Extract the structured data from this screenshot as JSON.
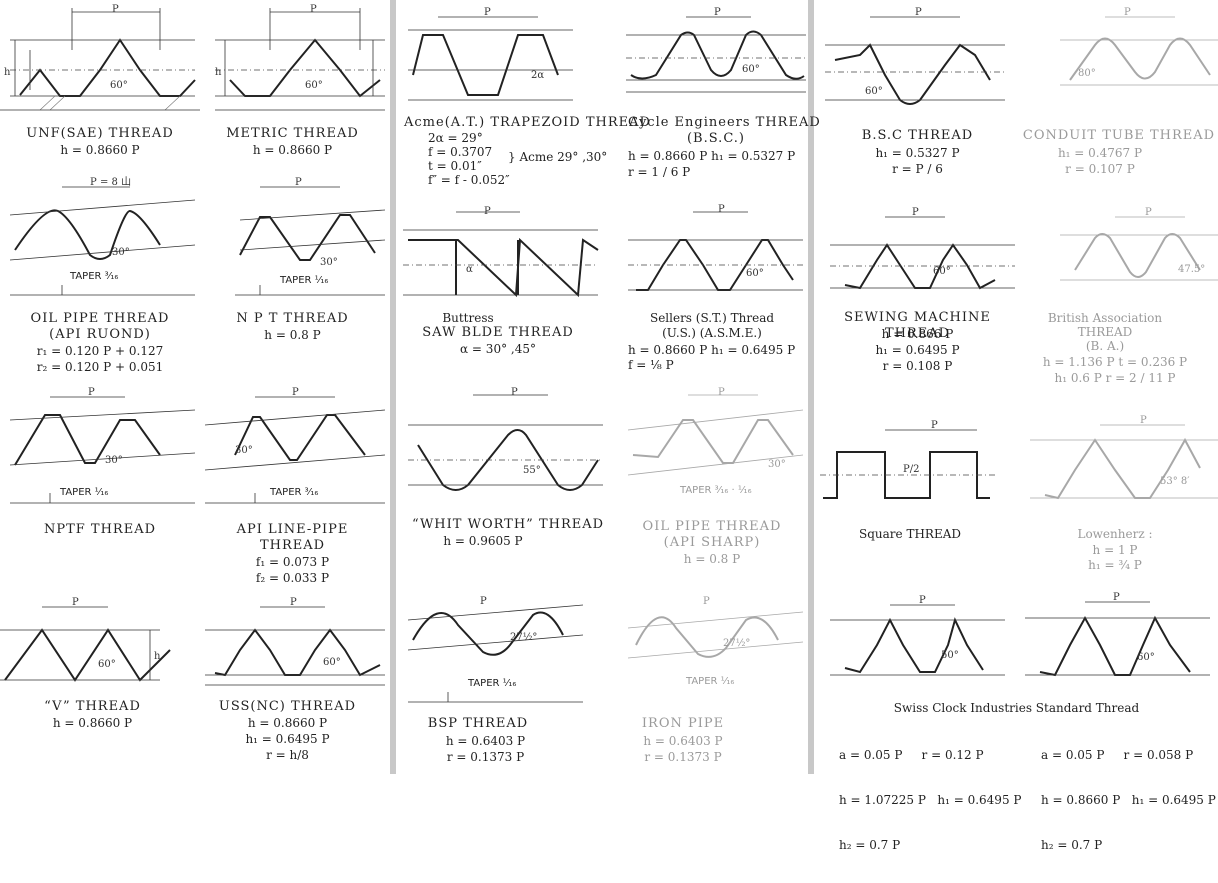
{
  "diagrams": [
    {
      "id": "unf",
      "title": "UNF(SAE) THREAD",
      "formulas": [
        "h = 0.8660 P"
      ],
      "labels": {
        "pitch": "P",
        "angle": "60°"
      }
    },
    {
      "id": "metric",
      "title": "METRIC THREAD",
      "formulas": [
        "h = 0.8660 P"
      ],
      "labels": {
        "pitch": "P",
        "angle": "60°"
      }
    },
    {
      "id": "acme",
      "title": "Acme(A.T.) TRAPEZOID THREAD",
      "formulas": [
        "2α = 29°",
        "f = 0.3707",
        "t = 0.01″",
        "f″ = f - 0.052″"
      ],
      "note": "} Acme 29° ,30°",
      "labels": {
        "pitch": "P",
        "angle": "2α"
      }
    },
    {
      "id": "cycle",
      "title": "Cycle Engineers THREAD",
      "subtitle": "(B.S.C.)",
      "formulas": [
        "h = 0.8660 P   h₁ = 0.5327 P",
        "r = 1 / 6 P"
      ],
      "labels": {
        "pitch": "P",
        "angle": "60°"
      }
    },
    {
      "id": "bsc",
      "title": "B.S.C THREAD",
      "formulas": [
        "h₁ = 0.5327 P",
        "r = P / 6"
      ],
      "labels": {
        "pitch": "P",
        "angle": "60°"
      }
    },
    {
      "id": "conduit",
      "title": "CONDUIT TUBE THREAD",
      "formulas": [
        "h₁ = 0.4767 P",
        "r = 0.107 P"
      ],
      "labels": {
        "pitch": "P",
        "angle": "80°"
      }
    },
    {
      "id": "oilpipe",
      "title": "OIL PIPE THREAD",
      "subtitle": "(API RUOND)",
      "formulas": [
        "r₁ = 0.120 P + 0.127",
        "r₂ = 0.120 P + 0.051"
      ],
      "taper": "TAPER ³⁄₁₆",
      "labels": {
        "pitch": "P",
        "per": "= 8 山",
        "angle": "30°"
      }
    },
    {
      "id": "npt",
      "title": "N P T THREAD",
      "formulas": [
        "h = 0.8 P"
      ],
      "taper": "TAPER ¹⁄₁₆",
      "labels": {
        "pitch": "P",
        "angle": "30°"
      }
    },
    {
      "id": "buttress",
      "title": "Buttress",
      "subtitle": "SAW BLDE THREAD",
      "formulas": [
        "α = 30° ,45°"
      ],
      "labels": {
        "pitch": "P",
        "angle": "α"
      }
    },
    {
      "id": "sellers",
      "title": "Sellers (S.T.) Thread",
      "subtitle": "(U.S.) (A.S.M.E.)",
      "formulas": [
        "h = 0.8660 P   h₁ = 0.6495 P",
        "f = ⅛ P"
      ],
      "labels": {
        "pitch": "P",
        "angle": "60°"
      }
    },
    {
      "id": "sewing",
      "title": "SEWING MACHINE THREAD",
      "formulas": [
        "h = 0.866 P",
        "h₁ = 0.6495 P",
        "r = 0.108 P"
      ],
      "labels": {
        "pitch": "P",
        "angle": "60°"
      }
    },
    {
      "id": "ba",
      "title": "British Association",
      "subtitle": "THREAD",
      "subtitle2": "(B. A.)",
      "formulas": [
        "h = 1.136 P     t = 0.236 P",
        "h₁ 0.6 P     r = 2 / 11 P"
      ],
      "labels": {
        "pitch": "P",
        "angle": "47.5°"
      }
    },
    {
      "id": "nptf",
      "title": "NPTF THREAD",
      "formulas": [],
      "taper": "TAPER ¹⁄₁₆",
      "labels": {
        "pitch": "P",
        "angle": "30°"
      }
    },
    {
      "id": "apiline",
      "title": "API LINE-PIPE",
      "subtitle": "THREAD",
      "formulas": [
        "f₁ = 0.073 P",
        "f₂ = 0.033 P"
      ],
      "taper": "TAPER ³⁄₁₆",
      "labels": {
        "pitch": "P",
        "angle": "30°"
      }
    },
    {
      "id": "whitworth",
      "title": "“WHIT WORTH” THREAD",
      "formulas": [
        "h = 0.9605 P"
      ],
      "labels": {
        "pitch": "P",
        "angle": "55°"
      }
    },
    {
      "id": "apisharp",
      "title": "OIL PIPE THREAD",
      "subtitle": "(API SHARP)",
      "formulas": [
        "h = 0.8 P"
      ],
      "taper": "TAPER ³⁄₁₆ · ¹⁄₁₆",
      "labels": {
        "pitch": "P",
        "angle": "30°"
      }
    },
    {
      "id": "square",
      "title": "Square THREAD",
      "formulas": [],
      "labels": {
        "pitch": "P",
        "half": "P/2"
      }
    },
    {
      "id": "lowenherz",
      "title": "Lowenherz :",
      "formulas": [
        "h = 1 P",
        "h₁ = ¾ P"
      ],
      "labels": {
        "pitch": "P",
        "angle": "53° 8′"
      }
    },
    {
      "id": "v",
      "title": "“V” THREAD",
      "formulas": [
        "h = 0.8660 P"
      ],
      "labels": {
        "pitch": "P",
        "angle": "60°"
      }
    },
    {
      "id": "ussnc",
      "title": "USS(NC) THREAD",
      "formulas": [
        "h = 0.8660 P",
        "h₁ = 0.6495 P",
        "r = h/8"
      ],
      "labels": {
        "pitch": "P",
        "angle": "60°"
      }
    },
    {
      "id": "bsp",
      "title": "BSP THREAD",
      "formulas": [
        "h = 0.6403 P",
        "r = 0.1373 P"
      ],
      "taper": "TAPER ¹⁄₁₆",
      "labels": {
        "pitch": "P",
        "angle": "27½°"
      }
    },
    {
      "id": "ironpipe",
      "title": "IRON PIPE",
      "formulas": [
        "h = 0.6403 P",
        "r = 0.1373 P"
      ],
      "taper": "TAPER ¹⁄₁₆",
      "labels": {
        "pitch": "P",
        "angle": "27½°"
      }
    },
    {
      "id": "swiss",
      "title": "Swiss Clock Industries Standard Thread",
      "formulas": [
        "a = 0.05 P     r = 0.12 P",
        "h = 1.07225 P   h₁ = 0.6495 P",
        "h₂ = 0.7 P"
      ],
      "formulas2": [
        "a = 0.05 P     r = 0.058 P",
        "h = 0.8660 P   h₁ = 0.6495 P",
        "h₂ = 0.7 P"
      ],
      "labels": {
        "pitch": "P",
        "angle": "50°",
        "angle2": "60°"
      }
    }
  ]
}
